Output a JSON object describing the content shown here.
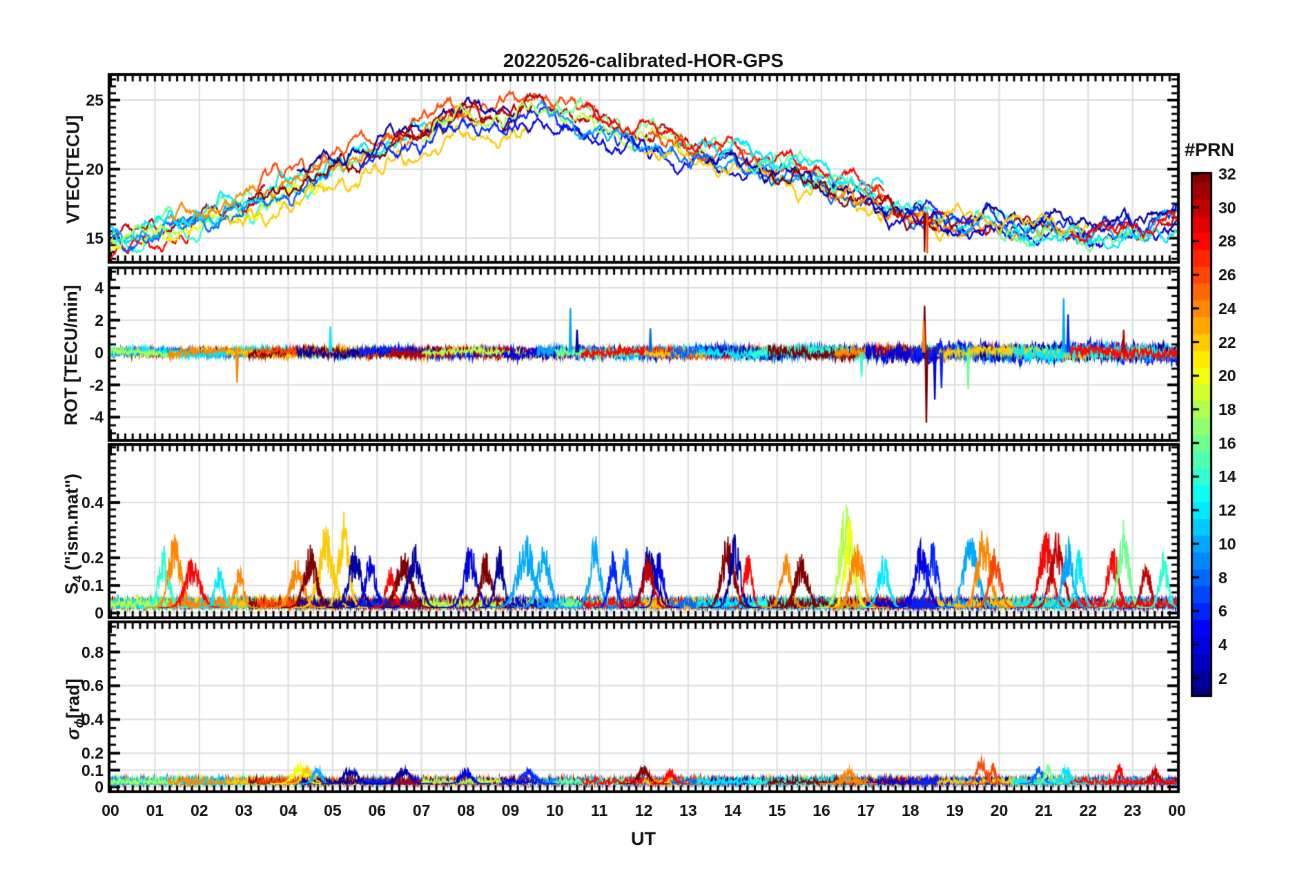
{
  "figure": {
    "title": "20220526-calibrated-HOR-GPS",
    "xlabel": "UT",
    "background": "#ffffff",
    "text_color": "#141414",
    "grid_color": "#dcdcdc",
    "axis_color": "#000000"
  },
  "colorbar": {
    "label": "#PRN",
    "min": 1,
    "max": 32,
    "ticks": [
      2,
      4,
      6,
      8,
      10,
      12,
      14,
      16,
      18,
      20,
      22,
      24,
      26,
      28,
      30,
      32
    ],
    "colormap": "jet",
    "orientation": "vertical"
  },
  "chart_data": {
    "type": "line",
    "title": "20220526-calibrated-HOR-GPS",
    "xlabel": "UT",
    "x_range": [
      0,
      24
    ],
    "x_tick_labels": [
      "00",
      "01",
      "02",
      "03",
      "04",
      "05",
      "06",
      "07",
      "08",
      "09",
      "10",
      "11",
      "12",
      "13",
      "14",
      "15",
      "16",
      "17",
      "18",
      "19",
      "20",
      "21",
      "22",
      "23",
      "00"
    ],
    "x_minor_step_hours": 0.16667,
    "legend": "colorbar #PRN 1-32, jet colormap, one line per GPS satellite PRN",
    "panels": [
      {
        "id": "vtec",
        "ylabel": "VTEC[TECU]",
        "ylim": [
          13.35,
          26.75
        ],
        "yticks": [
          15,
          20,
          25
        ],
        "ytick_labels": [
          "15",
          "20",
          "25"
        ],
        "minor_step": 0.5,
        "description": "Vertical TEC per satellite; diurnal rise from ~14.5 TECU at 00 UT to ~25 TECU near 08-10 UT, decay to ~15-16 TECU after 19 UT",
        "glitches": [
          {
            "prn": 32,
            "t": 18.32,
            "v": 14.0
          },
          {
            "prn": 26,
            "t": 18.38,
            "v": 13.9
          }
        ]
      },
      {
        "id": "rot",
        "ylabel": "ROT [TECU/min]",
        "ylim": [
          -5.35,
          5.15
        ],
        "yticks": [
          -4,
          -2,
          0,
          2,
          4
        ],
        "ytick_labels": [
          "-4",
          "-2",
          "0",
          "2",
          "4"
        ],
        "minor_step": 0.5,
        "description": "Rate of TEC, noise band around 0 (±0.5), enhanced fluctuations 17.5-22 UT",
        "spikes": [
          {
            "prn": 24,
            "t": 2.85,
            "v": -1.85
          },
          {
            "prn": 12,
            "t": 4.95,
            "v": 1.6
          },
          {
            "prn": 10,
            "t": 10.35,
            "v": 2.75
          },
          {
            "prn": 2,
            "t": 10.5,
            "v": 1.4
          },
          {
            "prn": 8,
            "t": 12.15,
            "v": 1.5
          },
          {
            "prn": 14,
            "t": 16.9,
            "v": -1.5
          },
          {
            "prn": 32,
            "t": 18.32,
            "v": 2.9
          },
          {
            "prn": 32,
            "t": 18.36,
            "v": -4.35
          },
          {
            "prn": 24,
            "t": 18.3,
            "v": 1.95
          },
          {
            "prn": 4,
            "t": 18.55,
            "v": -2.9
          },
          {
            "prn": 6,
            "t": 18.7,
            "v": -2.2
          },
          {
            "prn": 16,
            "t": 19.3,
            "v": -2.25
          },
          {
            "prn": 10,
            "t": 21.45,
            "v": 3.35
          },
          {
            "prn": 6,
            "t": 21.55,
            "v": 2.35
          },
          {
            "prn": 30,
            "t": 22.8,
            "v": 1.4
          }
        ]
      },
      {
        "id": "s4",
        "ylabel_parts": {
          "pre": "S",
          "sub": "4",
          "post": " (\"ism.mat\")"
        },
        "ylim": [
          -0.012,
          0.605
        ],
        "yticks": [
          0,
          0.1,
          0.2,
          0.4
        ],
        "ytick_labels": [
          "0",
          "0.1",
          "0.2",
          "0.4"
        ],
        "minor_step": 0.025,
        "baseline": 0.04,
        "description": "Amplitude scintillation index, baseline 0.02-0.08 with bursts 0.15-0.40",
        "bursts": [
          {
            "prn": 14,
            "t": 1.2,
            "peak": 0.22,
            "w": 0.25
          },
          {
            "prn": 24,
            "t": 1.45,
            "peak": 0.28,
            "w": 0.3
          },
          {
            "prn": 28,
            "t": 1.85,
            "peak": 0.19,
            "w": 0.35
          },
          {
            "prn": 12,
            "t": 2.45,
            "peak": 0.16,
            "w": 0.2
          },
          {
            "prn": 24,
            "t": 2.9,
            "peak": 0.15,
            "w": 0.2
          },
          {
            "prn": 24,
            "t": 4.2,
            "peak": 0.18,
            "w": 0.3
          },
          {
            "prn": 22,
            "t": 4.85,
            "peak": 0.3,
            "w": 0.35
          },
          {
            "prn": 22,
            "t": 5.25,
            "peak": 0.35,
            "w": 0.25
          },
          {
            "prn": 32,
            "t": 4.5,
            "peak": 0.23,
            "w": 0.3
          },
          {
            "prn": 2,
            "t": 5.5,
            "peak": 0.23,
            "w": 0.3
          },
          {
            "prn": 4,
            "t": 5.85,
            "peak": 0.2,
            "w": 0.25
          },
          {
            "prn": 32,
            "t": 6.6,
            "peak": 0.21,
            "w": 0.35
          },
          {
            "prn": 2,
            "t": 6.85,
            "peak": 0.24,
            "w": 0.3
          },
          {
            "prn": 28,
            "t": 6.3,
            "peak": 0.15,
            "w": 0.2
          },
          {
            "prn": 4,
            "t": 8.1,
            "peak": 0.24,
            "w": 0.3
          },
          {
            "prn": 32,
            "t": 8.45,
            "peak": 0.21,
            "w": 0.25
          },
          {
            "prn": 2,
            "t": 8.75,
            "peak": 0.23,
            "w": 0.2
          },
          {
            "prn": 10,
            "t": 9.35,
            "peak": 0.27,
            "w": 0.4
          },
          {
            "prn": 10,
            "t": 9.75,
            "peak": 0.25,
            "w": 0.3
          },
          {
            "prn": 10,
            "t": 10.9,
            "peak": 0.27,
            "w": 0.25
          },
          {
            "prn": 6,
            "t": 11.3,
            "peak": 0.21,
            "w": 0.2
          },
          {
            "prn": 8,
            "t": 11.6,
            "peak": 0.23,
            "w": 0.2
          },
          {
            "prn": 2,
            "t": 12.15,
            "peak": 0.26,
            "w": 0.3
          },
          {
            "prn": 4,
            "t": 12.35,
            "peak": 0.22,
            "w": 0.2
          },
          {
            "prn": 30,
            "t": 12.1,
            "peak": 0.2,
            "w": 0.25
          },
          {
            "prn": 32,
            "t": 13.9,
            "peak": 0.28,
            "w": 0.3
          },
          {
            "prn": 2,
            "t": 14.05,
            "peak": 0.27,
            "w": 0.25
          },
          {
            "prn": 28,
            "t": 14.35,
            "peak": 0.2,
            "w": 0.2
          },
          {
            "prn": 24,
            "t": 15.2,
            "peak": 0.2,
            "w": 0.25
          },
          {
            "prn": 32,
            "t": 15.55,
            "peak": 0.2,
            "w": 0.3
          },
          {
            "prn": 18,
            "t": 16.55,
            "peak": 0.4,
            "w": 0.3
          },
          {
            "prn": 20,
            "t": 16.65,
            "peak": 0.34,
            "w": 0.25
          },
          {
            "prn": 24,
            "t": 16.8,
            "peak": 0.26,
            "w": 0.3
          },
          {
            "prn": 12,
            "t": 17.4,
            "peak": 0.2,
            "w": 0.25
          },
          {
            "prn": 4,
            "t": 18.25,
            "peak": 0.25,
            "w": 0.3
          },
          {
            "prn": 6,
            "t": 18.5,
            "peak": 0.24,
            "w": 0.25
          },
          {
            "prn": 10,
            "t": 19.35,
            "peak": 0.27,
            "w": 0.35
          },
          {
            "prn": 24,
            "t": 19.65,
            "peak": 0.32,
            "w": 0.3
          },
          {
            "prn": 26,
            "t": 19.9,
            "peak": 0.24,
            "w": 0.25
          },
          {
            "prn": 28,
            "t": 21.05,
            "peak": 0.3,
            "w": 0.3
          },
          {
            "prn": 30,
            "t": 21.3,
            "peak": 0.28,
            "w": 0.3
          },
          {
            "prn": 10,
            "t": 21.55,
            "peak": 0.25,
            "w": 0.25
          },
          {
            "prn": 12,
            "t": 21.8,
            "peak": 0.22,
            "w": 0.2
          },
          {
            "prn": 28,
            "t": 22.55,
            "peak": 0.25,
            "w": 0.25
          },
          {
            "prn": 16,
            "t": 22.8,
            "peak": 0.32,
            "w": 0.25
          },
          {
            "prn": 30,
            "t": 23.3,
            "peak": 0.2,
            "w": 0.2
          },
          {
            "prn": 14,
            "t": 23.7,
            "peak": 0.22,
            "w": 0.2
          }
        ]
      },
      {
        "id": "sigma_phi",
        "ylabel_parts": {
          "pre": "σ",
          "sub": "ϕ",
          "post": "[rad]"
        },
        "ylim": [
          -0.02,
          0.97
        ],
        "yticks": [
          0,
          0.1,
          0.2,
          0.4,
          0.6,
          0.8
        ],
        "ytick_labels": [
          "0",
          "0.1",
          "0.2",
          "0.4",
          "0.6",
          "0.8"
        ],
        "minor_step": 0.05,
        "baseline": 0.045,
        "description": "Phase scintillation, flat band 0.02-0.09 rad with small bumps to ~0.17",
        "bursts": [
          {
            "prn": 20,
            "t": 4.25,
            "peak": 0.125,
            "w": 0.3
          },
          {
            "prn": 22,
            "t": 4.45,
            "peak": 0.12,
            "w": 0.25
          },
          {
            "prn": 10,
            "t": 4.65,
            "peak": 0.11,
            "w": 0.2
          },
          {
            "prn": 2,
            "t": 5.4,
            "peak": 0.11,
            "w": 0.3
          },
          {
            "prn": 2,
            "t": 6.6,
            "peak": 0.1,
            "w": 0.3
          },
          {
            "prn": 4,
            "t": 8.0,
            "peak": 0.1,
            "w": 0.25
          },
          {
            "prn": 6,
            "t": 9.4,
            "peak": 0.09,
            "w": 0.3
          },
          {
            "prn": 32,
            "t": 12.0,
            "peak": 0.11,
            "w": 0.25
          },
          {
            "prn": 28,
            "t": 12.6,
            "peak": 0.09,
            "w": 0.2
          },
          {
            "prn": 24,
            "t": 16.6,
            "peak": 0.09,
            "w": 0.3
          },
          {
            "prn": 26,
            "t": 19.6,
            "peak": 0.17,
            "w": 0.2
          },
          {
            "prn": 26,
            "t": 19.85,
            "peak": 0.13,
            "w": 0.15
          },
          {
            "prn": 8,
            "t": 20.9,
            "peak": 0.11,
            "w": 0.2
          },
          {
            "prn": 16,
            "t": 21.1,
            "peak": 0.13,
            "w": 0.15
          },
          {
            "prn": 12,
            "t": 21.5,
            "peak": 0.11,
            "w": 0.2
          },
          {
            "prn": 28,
            "t": 22.7,
            "peak": 0.13,
            "w": 0.15
          },
          {
            "prn": 30,
            "t": 23.5,
            "peak": 0.1,
            "w": 0.2
          }
        ]
      }
    ],
    "vtec_envelope": [
      [
        0,
        14.8
      ],
      [
        1,
        15.6
      ],
      [
        2,
        16.4
      ],
      [
        3,
        17.3
      ],
      [
        4,
        18.6
      ],
      [
        5,
        19.8
      ],
      [
        6,
        21.0
      ],
      [
        7,
        22.3
      ],
      [
        7.5,
        23.2
      ],
      [
        8,
        23.3
      ],
      [
        9,
        23.6
      ],
      [
        9.8,
        24.3
      ],
      [
        10.5,
        23.3
      ],
      [
        11,
        22.7
      ],
      [
        12,
        22.1
      ],
      [
        13,
        21.3
      ],
      [
        14,
        20.7
      ],
      [
        15,
        19.9
      ],
      [
        16,
        19.1
      ],
      [
        17,
        18.0
      ],
      [
        18,
        16.9
      ],
      [
        19,
        16.2
      ],
      [
        20,
        16.0
      ],
      [
        21,
        15.8
      ],
      [
        22,
        15.6
      ],
      [
        23,
        15.6
      ],
      [
        24,
        16.8
      ]
    ],
    "arcs": [
      {
        "prn": 28,
        "t0": 0,
        "t1": 1.9,
        "dv": -0.9,
        "amp": 0.15
      },
      {
        "prn": 14,
        "t0": 0,
        "t1": 4.6,
        "dv": -0.5,
        "amp": 0.15
      },
      {
        "prn": 16,
        "t0": 0.7,
        "t1": 6.3,
        "dv": 0.3,
        "amp": 0.15
      },
      {
        "prn": 30,
        "t0": 0,
        "t1": 3.5,
        "dv": 0.2,
        "amp": 0.18
      },
      {
        "prn": 20,
        "t0": 0,
        "t1": 4.9,
        "dv": -0.6,
        "amp": 0.15
      },
      {
        "prn": 8,
        "t0": 0,
        "t1": 5.0,
        "dv": -0.3,
        "amp": 0.16
      },
      {
        "prn": 10,
        "t0": 0,
        "t1": 3.1,
        "dv": 0.1,
        "amp": 0.16
      },
      {
        "prn": 12,
        "t0": 0,
        "t1": 7.7,
        "dv": 0.5,
        "amp": 0.2
      },
      {
        "prn": 18,
        "t0": 0,
        "t1": 1.6,
        "dv": -0.2,
        "amp": 0.14
      },
      {
        "prn": 24,
        "t0": 1.3,
        "t1": 8.4,
        "dv": 0.5,
        "amp": 0.22
      },
      {
        "prn": 22,
        "t0": 2.6,
        "t1": 9.4,
        "dv": -1.1,
        "amp": 0.18
      },
      {
        "prn": 32,
        "t0": 3.1,
        "t1": 9.5,
        "dv": 0.1,
        "amp": 0.22
      },
      {
        "prn": 26,
        "t0": 3.3,
        "t1": 10.9,
        "dv": 1.2,
        "amp": 0.2
      },
      {
        "prn": 2,
        "t0": 4.2,
        "t1": 9.1,
        "dv": 0.9,
        "amp": 0.22
      },
      {
        "prn": 6,
        "t0": 5.6,
        "t1": 12.5,
        "dv": -0.3,
        "amp": 0.25
      },
      {
        "prn": 30,
        "t0": 6.3,
        "t1": 13.5,
        "dv": 0.6,
        "amp": 0.2
      },
      {
        "prn": 18,
        "t0": 7.0,
        "t1": 13.4,
        "dv": 0.2,
        "amp": 0.18
      },
      {
        "prn": 4,
        "t0": 8.8,
        "t1": 15.0,
        "dv": -0.8,
        "amp": 0.3
      },
      {
        "prn": 10,
        "t0": 9.6,
        "t1": 16.3,
        "dv": -0.2,
        "amp": 0.3
      },
      {
        "prn": 16,
        "t0": 10.0,
        "t1": 16.6,
        "dv": 0.9,
        "amp": 0.2
      },
      {
        "prn": 28,
        "t0": 10.6,
        "t1": 17.4,
        "dv": 0.9,
        "amp": 0.2
      },
      {
        "prn": 26,
        "t0": 12.1,
        "t1": 18.4,
        "dv": 0.2,
        "amp": 0.2
      },
      {
        "prn": 22,
        "t0": 12.0,
        "t1": 18.9,
        "dv": -0.7,
        "amp": 0.18
      },
      {
        "prn": 8,
        "t0": 12.6,
        "t1": 19.1,
        "dv": -0.4,
        "amp": 0.28
      },
      {
        "prn": 2,
        "t0": 13.4,
        "t1": 19.4,
        "dv": -0.1,
        "amp": 0.3
      },
      {
        "prn": 12,
        "t0": 13.2,
        "t1": 17.4,
        "dv": 0.9,
        "amp": 0.22
      },
      {
        "prn": 14,
        "t0": 14.4,
        "t1": 21.1,
        "dv": 0.2,
        "amp": 0.25
      },
      {
        "prn": 32,
        "t0": 14.8,
        "t1": 18.65,
        "dv": -0.4,
        "amp": 0.3
      },
      {
        "prn": 24,
        "t0": 16.3,
        "t1": 21.4,
        "dv": -0.5,
        "amp": 0.25
      },
      {
        "prn": 30,
        "t0": 17.2,
        "t1": 24,
        "dv": -0.1,
        "amp": 0.3
      },
      {
        "prn": 4,
        "t0": 17.0,
        "t1": 24,
        "dv": -0.6,
        "amp": 0.5
      },
      {
        "prn": 6,
        "t0": 18.0,
        "t1": 24,
        "dv": 0.3,
        "amp": 0.5
      },
      {
        "prn": 10,
        "t0": 19.0,
        "t1": 24,
        "dv": -0.3,
        "amp": 0.45
      },
      {
        "prn": 2,
        "t0": 19.5,
        "t1": 24,
        "dv": 0.6,
        "amp": 0.4
      },
      {
        "prn": 16,
        "t0": 20.0,
        "t1": 23.4,
        "dv": -0.7,
        "amp": 0.3
      },
      {
        "prn": 22,
        "t0": 18.6,
        "t1": 22.0,
        "dv": 0.3,
        "amp": 0.25
      },
      {
        "prn": 12,
        "t0": 20.3,
        "t1": 24,
        "dv": -0.8,
        "amp": 0.35
      },
      {
        "prn": 28,
        "t0": 21.6,
        "t1": 24,
        "dv": -0.2,
        "amp": 0.3
      }
    ]
  }
}
